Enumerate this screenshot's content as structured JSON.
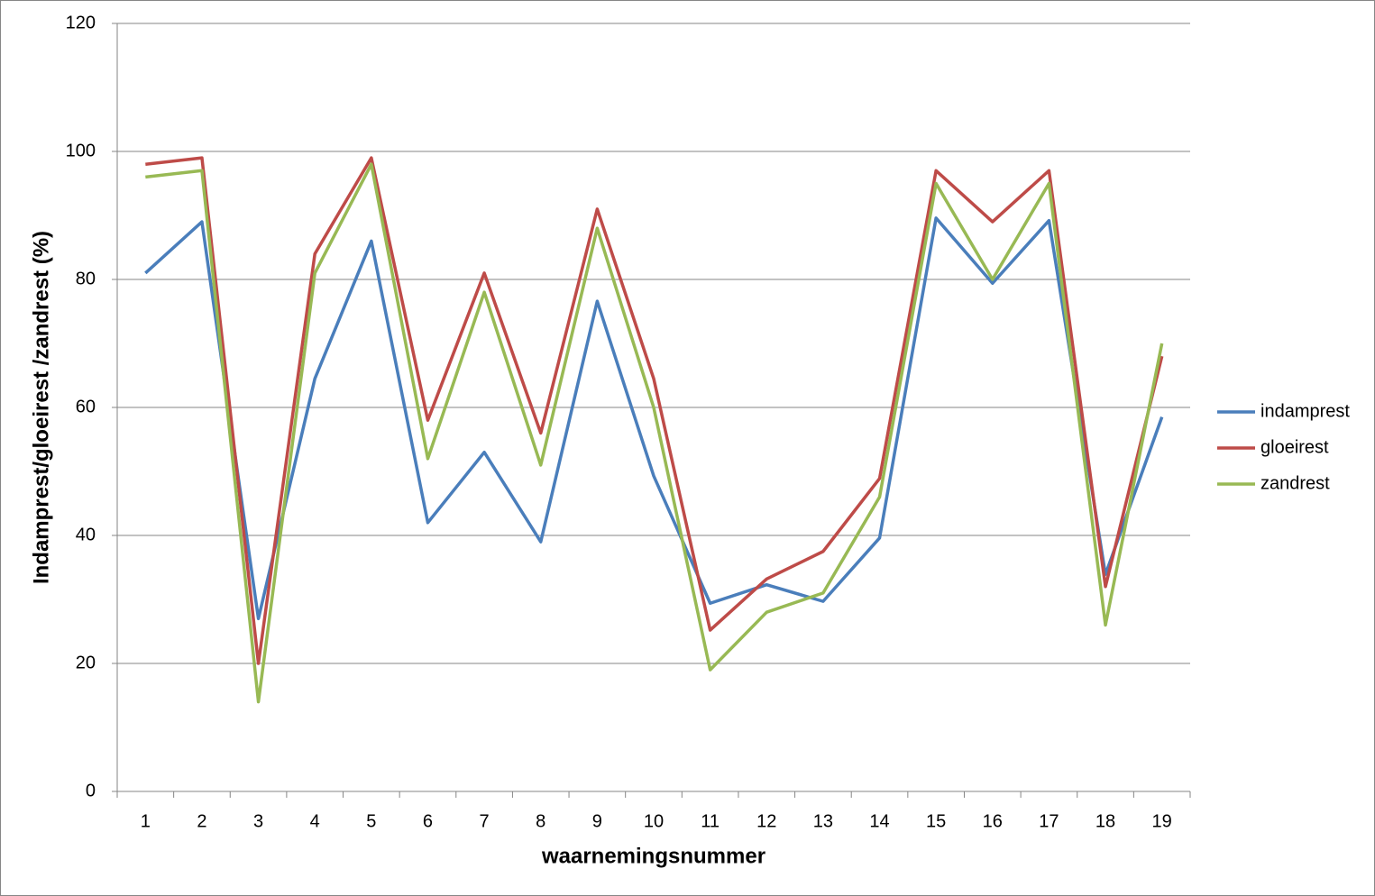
{
  "chart_data": {
    "type": "line",
    "x_label": "waarnemingsnummer",
    "y_label": "Indamprest/gloeirest /zandrest (%)",
    "categories": [
      "1",
      "2",
      "3",
      "4",
      "5",
      "6",
      "7",
      "8",
      "9",
      "10",
      "11",
      "12",
      "13",
      "14",
      "15",
      "16",
      "17",
      "18",
      "19"
    ],
    "series": [
      {
        "name": "indamprest",
        "color": "#4a7ebb",
        "values": [
          81,
          89,
          27,
          64.5,
          86,
          42,
          53,
          39,
          76.6,
          49.3,
          29.4,
          32.3,
          29.7,
          39.6,
          89.6,
          79.4,
          89.2,
          33.9,
          58.5
        ]
      },
      {
        "name": "gloeirest",
        "color": "#be4b48",
        "values": [
          98,
          99,
          20,
          84,
          99,
          58,
          81,
          56,
          91,
          64.5,
          25.2,
          33.2,
          37.5,
          48.9,
          97,
          89,
          97,
          32,
          68
        ]
      },
      {
        "name": "zandrest",
        "color": "#98b954",
        "values": [
          96,
          97,
          14,
          81,
          98,
          52,
          78,
          51,
          88,
          60,
          19,
          28,
          31,
          46,
          95,
          80,
          95,
          26,
          70
        ]
      }
    ],
    "ylim": [
      0,
      120
    ],
    "yticks": [
      0,
      20,
      40,
      60,
      80,
      100,
      120
    ],
    "grid": true,
    "legend": "right"
  }
}
